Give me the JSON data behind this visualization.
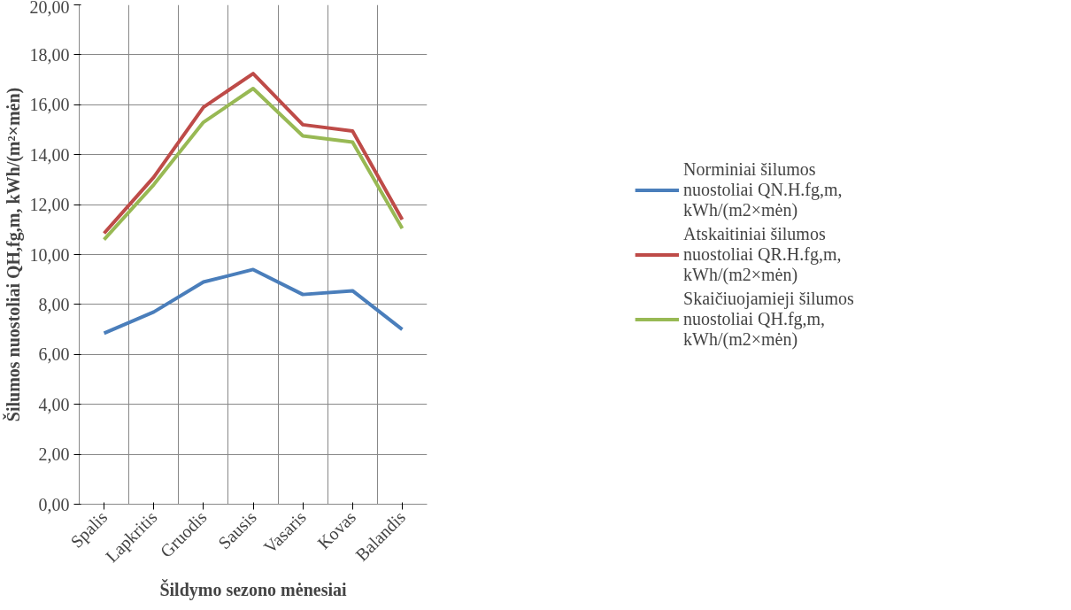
{
  "chart_data": {
    "type": "line",
    "xlabel": "Šildymo sezono mėnesiai",
    "ylabel": "Šilumos nuostoliai QH,fg,m, kWh/(m²×mėn)",
    "categories": [
      "Spalis",
      "Lapkritis",
      "Gruodis",
      "Sausis",
      "Vasaris",
      "Kovas",
      "Balandis"
    ],
    "series": [
      {
        "name": "Norminiai šilumos nuostoliai QN.H.fg,m, kWh/(m2×mėn)",
        "color": "#4a7ebb",
        "values": [
          6.85,
          7.7,
          8.9,
          9.4,
          8.4,
          8.55,
          7.0
        ]
      },
      {
        "name": "Atskaitiniai šilumos nuostoliai QR.H.fg,m, kWh/(m2×mėn)",
        "color": "#be4b48",
        "values": [
          10.85,
          13.1,
          15.9,
          17.25,
          15.2,
          14.95,
          11.4
        ]
      },
      {
        "name": "Skaičiuojamieji šilumos nuostoliai QH.fg,m, kWh/(m2×mėn)",
        "color": "#98b954",
        "values": [
          10.6,
          12.8,
          15.3,
          16.65,
          14.75,
          14.5,
          11.05
        ]
      }
    ],
    "ylim": [
      0,
      20
    ],
    "yticks": [
      {
        "value": 0,
        "label": "0,00"
      },
      {
        "value": 2,
        "label": "2,00"
      },
      {
        "value": 4,
        "label": "4,00"
      },
      {
        "value": 6,
        "label": "6,00"
      },
      {
        "value": 8,
        "label": "8,00"
      },
      {
        "value": 10,
        "label": "10,00"
      },
      {
        "value": 12,
        "label": "12,00"
      },
      {
        "value": 14,
        "label": "14,00"
      },
      {
        "value": 16,
        "label": "16,00"
      },
      {
        "value": 18,
        "label": "18,00"
      },
      {
        "value": 20,
        "label": "20,00"
      }
    ],
    "grid": true,
    "legend": "right",
    "marker": "none",
    "line_style": "solid"
  }
}
